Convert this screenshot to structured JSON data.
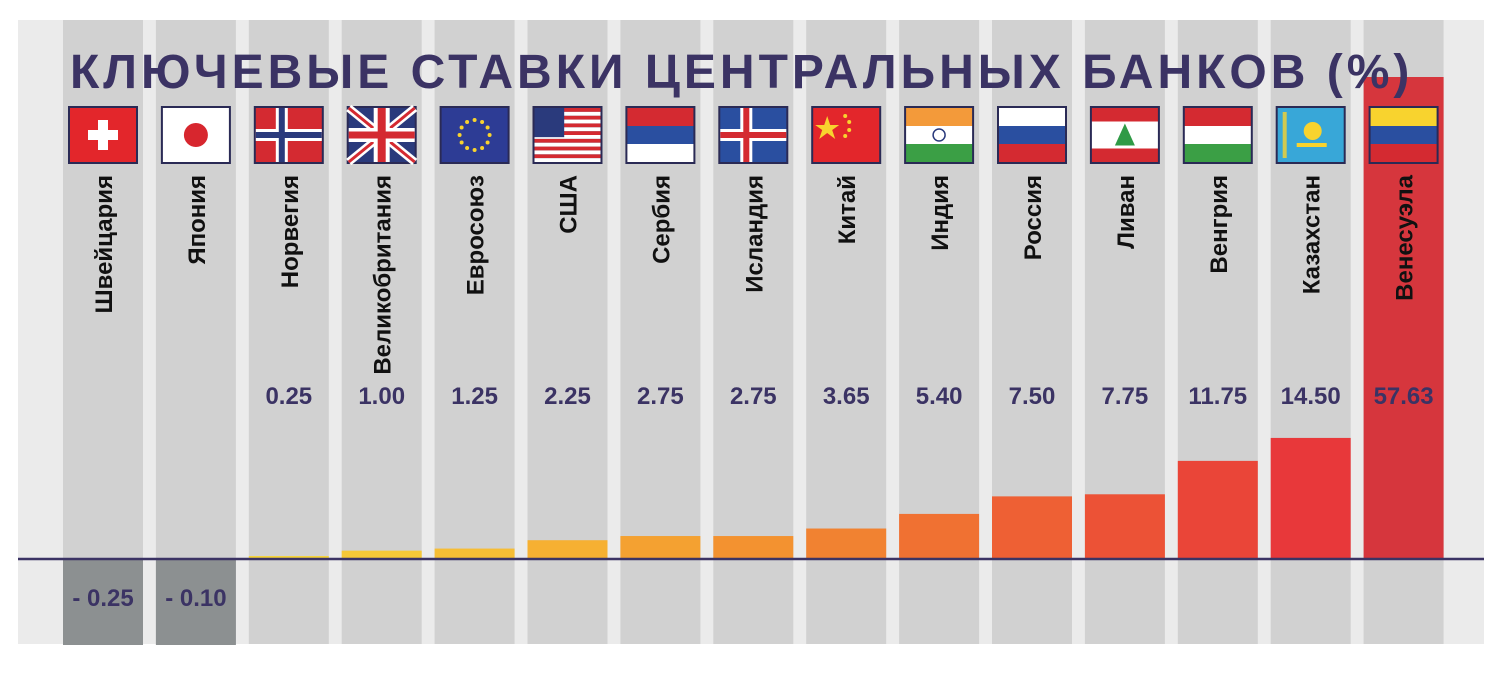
{
  "chart_data": {
    "type": "bar",
    "title": "КЛЮЧЕВЫЕ СТАВКИ ЦЕНТРАЛЬНЫХ БАНКОВ (%)",
    "categories": [
      "Швейцария",
      "Япония",
      "Норвегия",
      "Великобритания",
      "Евросоюз",
      "США",
      "Сербия",
      "Исландия",
      "Китай",
      "Индия",
      "Россия",
      "Ливан",
      "Венгрия",
      "Казахстан",
      "Венесуэла"
    ],
    "values": [
      -0.25,
      -0.1,
      0.25,
      1.0,
      1.25,
      2.25,
      2.75,
      2.75,
      3.65,
      5.4,
      7.5,
      7.75,
      11.75,
      14.5,
      57.63
    ],
    "value_labels": [
      "- 0.25",
      "- 0.10",
      "0.25",
      "1.00",
      "1.25",
      "2.25",
      "2.75",
      "2.75",
      "3.65",
      "5.40",
      "7.50",
      "7.75",
      "11.75",
      "14.50",
      "57.63"
    ],
    "flags": [
      "switzerland-flag",
      "japan-flag",
      "norway-flag",
      "uk-flag",
      "eu-flag",
      "usa-flag",
      "serbia-flag",
      "iceland-flag",
      "china-flag",
      "india-flag",
      "russia-flag",
      "lebanon-flag",
      "hungary-flag",
      "kazakhstan-flag",
      "venezuela-flag"
    ],
    "colors": {
      "background_column": "#d1d1d1",
      "gap": "#ebebeb",
      "baseline": "#3b3364",
      "title": "#3b3364",
      "negative_bar": "#8c9091",
      "bar_low": "#f6c935",
      "bar_mid": "#f28b30",
      "bar_high": "#e8383a",
      "highlight": "#d6363d"
    },
    "xlabel": "",
    "ylabel": "",
    "grid": false,
    "legend": "none"
  }
}
